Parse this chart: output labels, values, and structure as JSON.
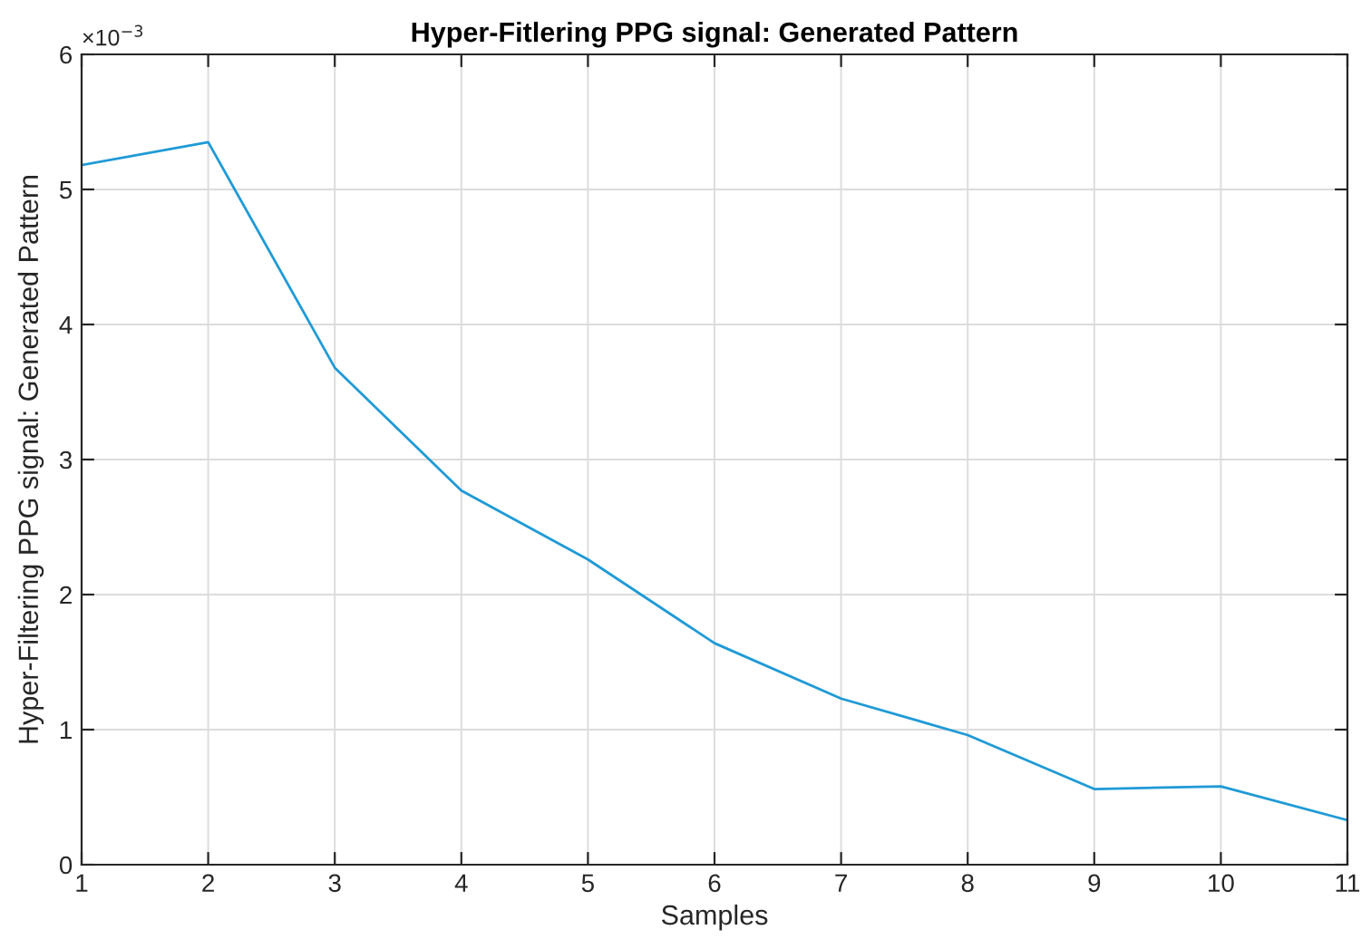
{
  "chart_data": {
    "type": "line",
    "title": "Hyper-Fitlering PPG signal: Generated Pattern",
    "xlabel": "Samples",
    "ylabel": "Hyper-Filtering PPG signal: Generated Pattern",
    "annotations": [
      "×10$^{−3}$"
    ],
    "x": [
      1,
      2,
      3,
      4,
      5,
      6,
      7,
      8,
      9,
      10,
      11
    ],
    "series": [
      {
        "color": "#1f9ad6",
        "values": [
          5.18,
          5.35,
          3.68,
          2.77,
          2.26,
          1.64,
          1.23,
          0.96,
          0.56,
          0.58,
          0.33
        ]
      }
    ],
    "xlim": [
      1,
      11
    ],
    "xticks": [
      1,
      2,
      3,
      4,
      5,
      6,
      7,
      8,
      9,
      10,
      11
    ],
    "ylim": [
      0,
      6
    ],
    "yticks": [
      0,
      1,
      2,
      3,
      4,
      5,
      6
    ],
    "grid": true,
    "marker": "none",
    "line_style": "solid"
  }
}
